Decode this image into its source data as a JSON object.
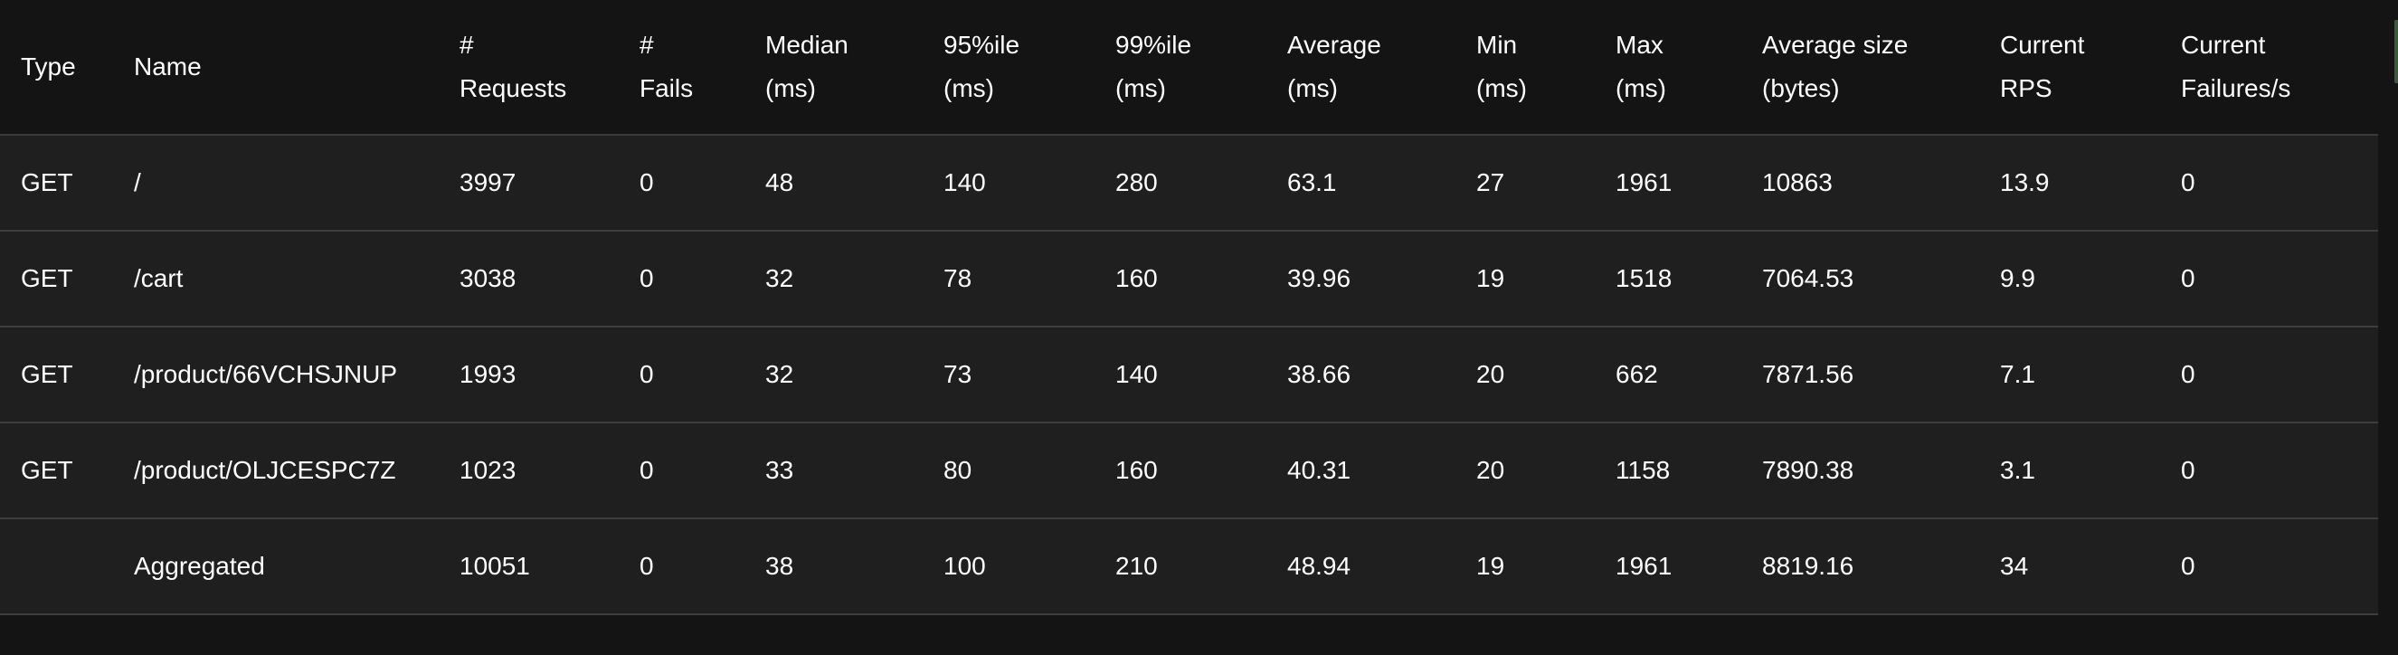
{
  "columns": [
    {
      "key": "type",
      "line1": "Type",
      "line2": ""
    },
    {
      "key": "name",
      "line1": "Name",
      "line2": ""
    },
    {
      "key": "requests",
      "line1": "#",
      "line2": "Requests"
    },
    {
      "key": "fails",
      "line1": "#",
      "line2": "Fails"
    },
    {
      "key": "median",
      "line1": "Median",
      "line2": "(ms)"
    },
    {
      "key": "p95",
      "line1": "95%ile",
      "line2": "(ms)"
    },
    {
      "key": "p99",
      "line1": "99%ile",
      "line2": "(ms)"
    },
    {
      "key": "average",
      "line1": "Average",
      "line2": "(ms)"
    },
    {
      "key": "min",
      "line1": "Min",
      "line2": "(ms)"
    },
    {
      "key": "max",
      "line1": "Max",
      "line2": "(ms)"
    },
    {
      "key": "avg_size",
      "line1": "Average size",
      "line2": "(bytes)"
    },
    {
      "key": "current_rps",
      "line1": "Current",
      "line2": "RPS"
    },
    {
      "key": "current_failures",
      "line1": "Current",
      "line2": "Failures/s"
    }
  ],
  "rows": [
    {
      "type": "GET",
      "name": "/",
      "requests": "3997",
      "fails": "0",
      "median": "48",
      "p95": "140",
      "p99": "280",
      "average": "63.1",
      "min": "27",
      "max": "1961",
      "avg_size": "10863",
      "current_rps": "13.9",
      "current_failures": "0"
    },
    {
      "type": "GET",
      "name": "/cart",
      "requests": "3038",
      "fails": "0",
      "median": "32",
      "p95": "78",
      "p99": "160",
      "average": "39.96",
      "min": "19",
      "max": "1518",
      "avg_size": "7064.53",
      "current_rps": "9.9",
      "current_failures": "0"
    },
    {
      "type": "GET",
      "name": "/product/66VCHSJNUP",
      "requests": "1993",
      "fails": "0",
      "median": "32",
      "p95": "73",
      "p99": "140",
      "average": "38.66",
      "min": "20",
      "max": "662",
      "avg_size": "7871.56",
      "current_rps": "7.1",
      "current_failures": "0"
    },
    {
      "type": "GET",
      "name": "/product/OLJCESPC7Z",
      "requests": "1023",
      "fails": "0",
      "median": "33",
      "p95": "80",
      "p99": "160",
      "average": "40.31",
      "min": "20",
      "max": "1158",
      "avg_size": "7890.38",
      "current_rps": "3.1",
      "current_failures": "0"
    },
    {
      "type": "",
      "name": "Aggregated",
      "requests": "10051",
      "fails": "0",
      "median": "38",
      "p95": "100",
      "p99": "210",
      "average": "48.94",
      "min": "19",
      "max": "1961",
      "avg_size": "8819.16",
      "current_rps": "34",
      "current_failures": "0"
    }
  ],
  "colors": {
    "page_background": "#141414",
    "row_background": "#1f1f1f",
    "row_divider": "#3d3d3d",
    "text": "#ffffff",
    "edge_accent": "#3a5a3a"
  }
}
